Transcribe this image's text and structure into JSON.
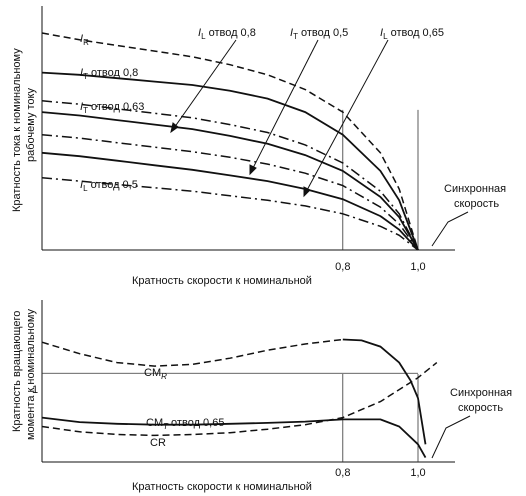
{
  "chart_data": [
    {
      "type": "line",
      "title": "",
      "xlabel": "Кратность скорости к номинальной",
      "ylabel": "Кратность тока к номинальному рабочему току",
      "ylabel_lines": [
        "Кратность тока к номинальному",
        "рабочему току"
      ],
      "xlim": [
        0,
        1.04
      ],
      "ylim": [
        0,
        1
      ],
      "x_ticks": [
        {
          "value": 0.8,
          "label": "0,8"
        },
        {
          "value": 1.0,
          "label": "1,0"
        }
      ],
      "annotation": {
        "lines": [
          "Синхронная",
          "скорость"
        ],
        "at_x": 1.0
      },
      "series": [
        {
          "name": "I_R",
          "style": "dashed",
          "x": [
            0,
            0.1,
            0.2,
            0.3,
            0.4,
            0.5,
            0.6,
            0.7,
            0.8,
            0.9,
            0.95,
            1.0
          ],
          "y": [
            0.96,
            0.93,
            0.905,
            0.88,
            0.855,
            0.82,
            0.775,
            0.71,
            0.61,
            0.43,
            0.27,
            0.0
          ]
        },
        {
          "name": "I_T отвод 0,8",
          "style": "solid",
          "x": [
            0,
            0.1,
            0.2,
            0.3,
            0.4,
            0.5,
            0.6,
            0.7,
            0.8,
            0.9,
            0.95,
            1.0
          ],
          "y": [
            0.785,
            0.775,
            0.76,
            0.745,
            0.73,
            0.705,
            0.67,
            0.61,
            0.51,
            0.35,
            0.22,
            0.0
          ]
        },
        {
          "name": "I_L отвод 0,8",
          "style": "dashdot",
          "x": [
            0,
            0.1,
            0.2,
            0.3,
            0.4,
            0.5,
            0.6,
            0.7,
            0.8,
            0.9,
            0.95,
            1.0
          ],
          "y": [
            0.66,
            0.645,
            0.625,
            0.605,
            0.585,
            0.555,
            0.52,
            0.465,
            0.385,
            0.26,
            0.16,
            0.0
          ]
        },
        {
          "name": "I_T отвод 0,63",
          "style": "solid",
          "x": [
            0,
            0.1,
            0.2,
            0.3,
            0.4,
            0.5,
            0.6,
            0.7,
            0.8,
            0.9,
            0.95,
            1.0
          ],
          "y": [
            0.61,
            0.595,
            0.575,
            0.555,
            0.535,
            0.505,
            0.47,
            0.42,
            0.35,
            0.235,
            0.145,
            0.0
          ]
        },
        {
          "name": "I_T отвод 0,5",
          "style": "dashdot",
          "x": [
            0,
            0.1,
            0.2,
            0.3,
            0.4,
            0.5,
            0.6,
            0.7,
            0.8,
            0.9,
            0.95,
            1.0
          ],
          "y": [
            0.51,
            0.495,
            0.475,
            0.455,
            0.435,
            0.41,
            0.38,
            0.34,
            0.285,
            0.19,
            0.115,
            0.0
          ]
        },
        {
          "name": "I_L отвод 0,65",
          "style": "solid",
          "x": [
            0,
            0.1,
            0.2,
            0.3,
            0.4,
            0.5,
            0.6,
            0.7,
            0.8,
            0.9,
            0.95,
            1.0
          ],
          "y": [
            0.43,
            0.415,
            0.395,
            0.375,
            0.355,
            0.33,
            0.305,
            0.27,
            0.225,
            0.15,
            0.09,
            0.0
          ]
        },
        {
          "name": "I_L отвод 0,5",
          "style": "dashdot",
          "x": [
            0,
            0.1,
            0.2,
            0.3,
            0.4,
            0.5,
            0.6,
            0.7,
            0.8,
            0.9,
            0.95,
            1.0
          ],
          "y": [
            0.32,
            0.305,
            0.29,
            0.275,
            0.26,
            0.24,
            0.22,
            0.195,
            0.16,
            0.105,
            0.065,
            0.0
          ]
        }
      ]
    },
    {
      "type": "line",
      "title": "",
      "xlabel": "Кратность скорости к номинальной",
      "ylabel": "Кратность вращающего момента к номинальному",
      "ylabel_lines": [
        "Кратность вращающего",
        "момента к номинальному"
      ],
      "xlim": [
        0,
        1.04
      ],
      "ylim": [
        0,
        1.6
      ],
      "x_ticks": [
        {
          "value": 0.8,
          "label": "0,8"
        },
        {
          "value": 1.0,
          "label": "1,0"
        }
      ],
      "y_ticks": [
        {
          "value": 1.0,
          "label": "1"
        }
      ],
      "annotation": {
        "lines": [
          "Синхронная",
          "скорость"
        ],
        "at_x": 1.0
      },
      "series": [
        {
          "name": "CM_R",
          "style": "dashed",
          "x": [
            0,
            0.1,
            0.2,
            0.3,
            0.4,
            0.5,
            0.6,
            0.7,
            0.8
          ],
          "y": [
            1.35,
            1.22,
            1.12,
            1.08,
            1.1,
            1.17,
            1.26,
            1.33,
            1.38
          ]
        },
        {
          "name": "CM_R tail",
          "style": "solid",
          "x": [
            0.8,
            0.85,
            0.9,
            0.95,
            0.98,
            1.0,
            1.02
          ],
          "y": [
            1.38,
            1.37,
            1.3,
            1.12,
            0.92,
            0.72,
            0.2
          ]
        },
        {
          "name": "CM_T отвод 0,65",
          "style": "solid",
          "x": [
            0,
            0.1,
            0.2,
            0.3,
            0.4,
            0.5,
            0.6,
            0.7,
            0.8,
            0.9,
            0.95,
            1.0,
            1.02
          ],
          "y": [
            0.5,
            0.45,
            0.43,
            0.42,
            0.42,
            0.43,
            0.44,
            0.455,
            0.48,
            0.48,
            0.4,
            0.2,
            0.05
          ]
        },
        {
          "name": "CR",
          "style": "dashed",
          "x": [
            0,
            0.1,
            0.2,
            0.3,
            0.4,
            0.5,
            0.6,
            0.7,
            0.8,
            0.9,
            1.0,
            1.05
          ],
          "y": [
            0.4,
            0.34,
            0.31,
            0.3,
            0.31,
            0.33,
            0.37,
            0.42,
            0.5,
            0.68,
            0.95,
            1.12
          ]
        }
      ],
      "labels": {
        "CM_R": "CM_R",
        "CM_T": "CM_T отвод 0,65",
        "CR": "CR"
      }
    }
  ]
}
